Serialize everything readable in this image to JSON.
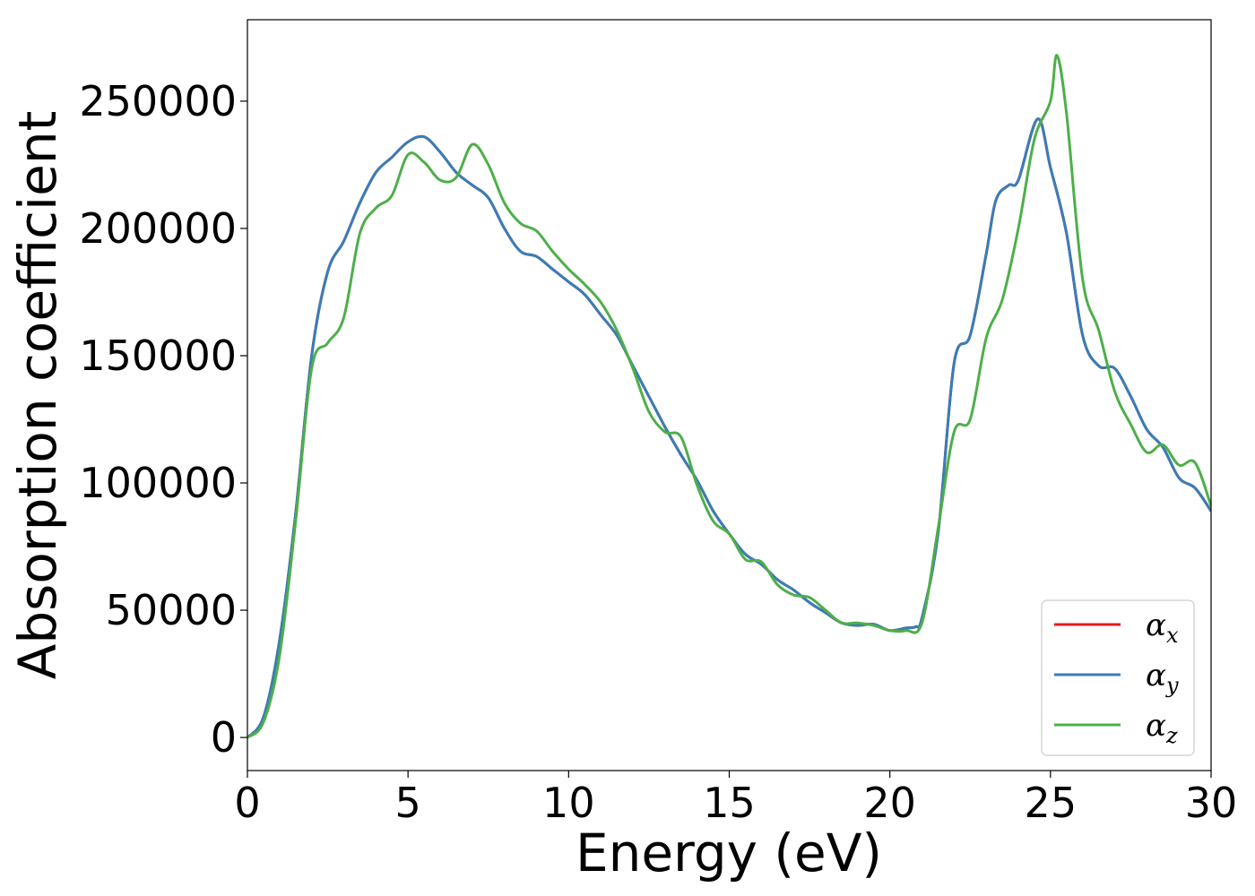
{
  "chart_data": {
    "type": "line",
    "title": "",
    "xlabel": "Energy (eV)",
    "ylabel": "Absorption coefficient",
    "xlim": [
      0,
      30
    ],
    "ylim": [
      -13000,
      282000
    ],
    "xticks": [
      0,
      5,
      10,
      15,
      20,
      25,
      30
    ],
    "xtick_labels": [
      "0",
      "5",
      "10",
      "15",
      "20",
      "25",
      "30"
    ],
    "yticks": [
      0,
      50000,
      100000,
      150000,
      200000,
      250000
    ],
    "ytick_labels": [
      "0",
      "50000",
      "100000",
      "150000",
      "200000",
      "250000"
    ],
    "grid": false,
    "legend": "lower-right",
    "series": [
      {
        "name": "α_x",
        "symbol": "α",
        "subscript": "x",
        "color": "#e41a1c",
        "x": [
          0,
          0.5,
          1,
          1.5,
          2,
          2.5,
          3,
          3.5,
          4,
          4.5,
          5,
          5.5,
          6,
          6.5,
          7,
          7.5,
          8,
          8.5,
          9,
          9.5,
          10,
          10.5,
          11,
          11.5,
          12,
          12.5,
          13,
          13.5,
          14,
          14.5,
          15,
          15.5,
          16,
          16.5,
          17,
          17.5,
          18,
          18.5,
          19,
          19.5,
          20,
          20.5,
          20.8,
          21,
          21.5,
          22,
          22.5,
          23,
          23.3,
          23.7,
          24,
          24.6,
          25,
          25.5,
          26,
          26.5,
          27,
          27.5,
          28,
          28.5,
          29,
          29.5,
          30
        ],
        "y": [
          0,
          8000,
          38000,
          88000,
          150000,
          183000,
          195000,
          210000,
          222000,
          228000,
          234000,
          236000,
          230000,
          222000,
          217000,
          212000,
          200000,
          191000,
          189000,
          184000,
          179000,
          174000,
          166000,
          158000,
          146000,
          134000,
          122000,
          111000,
          101000,
          89000,
          80000,
          72000,
          68000,
          62000,
          58000,
          53000,
          49000,
          45000,
          44000,
          44500,
          42000,
          43000,
          43500,
          47000,
          80000,
          147000,
          158000,
          190000,
          211000,
          217000,
          219000,
          243000,
          224000,
          198000,
          158000,
          146000,
          145000,
          134000,
          121000,
          114000,
          102000,
          98000,
          89000
        ]
      },
      {
        "name": "α_y",
        "symbol": "α",
        "subscript": "y",
        "color": "#377eb8",
        "x": [
          0,
          0.5,
          1,
          1.5,
          2,
          2.5,
          3,
          3.5,
          4,
          4.5,
          5,
          5.5,
          6,
          6.5,
          7,
          7.5,
          8,
          8.5,
          9,
          9.5,
          10,
          10.5,
          11,
          11.5,
          12,
          12.5,
          13,
          13.5,
          14,
          14.5,
          15,
          15.5,
          16,
          16.5,
          17,
          17.5,
          18,
          18.5,
          19,
          19.5,
          20,
          20.5,
          20.8,
          21,
          21.5,
          22,
          22.5,
          23,
          23.3,
          23.7,
          24,
          24.6,
          25,
          25.5,
          26,
          26.5,
          27,
          27.5,
          28,
          28.5,
          29,
          29.5,
          30
        ],
        "y": [
          0,
          8000,
          38000,
          88000,
          150000,
          183000,
          195000,
          210000,
          222000,
          228000,
          234000,
          236000,
          230000,
          222000,
          217000,
          212000,
          200000,
          191000,
          189000,
          184000,
          179000,
          174000,
          166000,
          158000,
          146000,
          134000,
          122000,
          111000,
          101000,
          89000,
          80000,
          72000,
          68000,
          62000,
          58000,
          53000,
          49000,
          45000,
          44000,
          44500,
          42000,
          43000,
          43500,
          47000,
          80000,
          147000,
          158000,
          190000,
          211000,
          217000,
          219000,
          243000,
          224000,
          198000,
          158000,
          146000,
          145000,
          134000,
          121000,
          114000,
          102000,
          98000,
          89000
        ]
      },
      {
        "name": "α_z",
        "symbol": "α",
        "subscript": "z",
        "color": "#4daf4a",
        "x": [
          0,
          0.5,
          1,
          1.5,
          2,
          2.5,
          3,
          3.5,
          4,
          4.5,
          5,
          5.5,
          6,
          6.5,
          7,
          7.5,
          8,
          8.5,
          9,
          9.5,
          10,
          10.5,
          11,
          11.5,
          12,
          12.5,
          13,
          13.5,
          14,
          14.5,
          15,
          15.5,
          16,
          16.5,
          17,
          17.5,
          18,
          18.5,
          19,
          19.5,
          20,
          20.5,
          21,
          21.5,
          22,
          22.5,
          23,
          23.5,
          24,
          24.5,
          25,
          25.2,
          25.5,
          26,
          26.5,
          27,
          27.5,
          28,
          28.5,
          29,
          29.5,
          30
        ],
        "y": [
          0,
          6000,
          32000,
          85000,
          145000,
          155000,
          165000,
          198000,
          208000,
          213000,
          229000,
          226000,
          219000,
          220000,
          233000,
          225000,
          210000,
          202000,
          199000,
          191000,
          184000,
          178000,
          171000,
          160000,
          145000,
          128000,
          120000,
          118000,
          99000,
          85000,
          80000,
          70000,
          69000,
          60000,
          56000,
          55000,
          50000,
          45000,
          45000,
          44000,
          42000,
          42000,
          45000,
          82000,
          120000,
          125000,
          157000,
          172000,
          200000,
          235000,
          250000,
          268000,
          245000,
          180000,
          160000,
          136000,
          123000,
          112000,
          115000,
          107000,
          108000,
          91000
        ]
      }
    ]
  }
}
